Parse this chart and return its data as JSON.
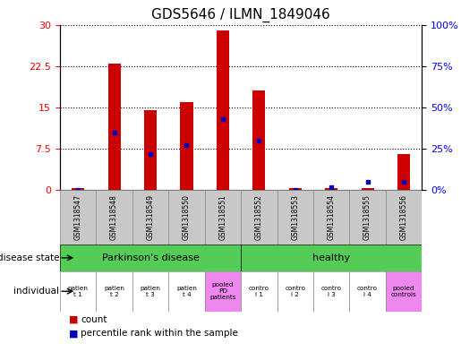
{
  "title": "GDS5646 / ILMN_1849046",
  "samples": [
    "GSM1318547",
    "GSM1318548",
    "GSM1318549",
    "GSM1318550",
    "GSM1318551",
    "GSM1318552",
    "GSM1318553",
    "GSM1318554",
    "GSM1318555",
    "GSM1318556"
  ],
  "count_values": [
    0.3,
    23,
    14.5,
    16,
    29,
    18,
    0.3,
    0.3,
    0.3,
    6.5
  ],
  "percentile_values": [
    0,
    35,
    22,
    27,
    43,
    30,
    0,
    1.5,
    5,
    5
  ],
  "ylim_left": [
    0,
    30
  ],
  "ylim_right": [
    0,
    100
  ],
  "yticks_left": [
    0,
    7.5,
    15,
    22.5,
    30
  ],
  "yticks_right": [
    0,
    25,
    50,
    75,
    100
  ],
  "bar_color": "#CC0000",
  "dot_color": "#0000BB",
  "background_color": "#FFFFFF",
  "sample_bg_color": "#C8C8C8",
  "disease_green": "#55CC55",
  "individual_pink": "#EE88EE",
  "individual_labels": [
    "patien\nt 1",
    "patien\nt 2",
    "patien\nt 3",
    "patien\nt 4",
    "pooled\nPD\npatients",
    "contro\nl 1",
    "contro\nl 2",
    "contro\nl 3",
    "contro\nl 4",
    "pooled\ncontrols"
  ],
  "individual_colors": [
    "#FFFFFF",
    "#FFFFFF",
    "#FFFFFF",
    "#FFFFFF",
    "#EE88EE",
    "#FFFFFF",
    "#FFFFFF",
    "#FFFFFF",
    "#FFFFFF",
    "#EE88EE"
  ],
  "bar_width": 0.35
}
